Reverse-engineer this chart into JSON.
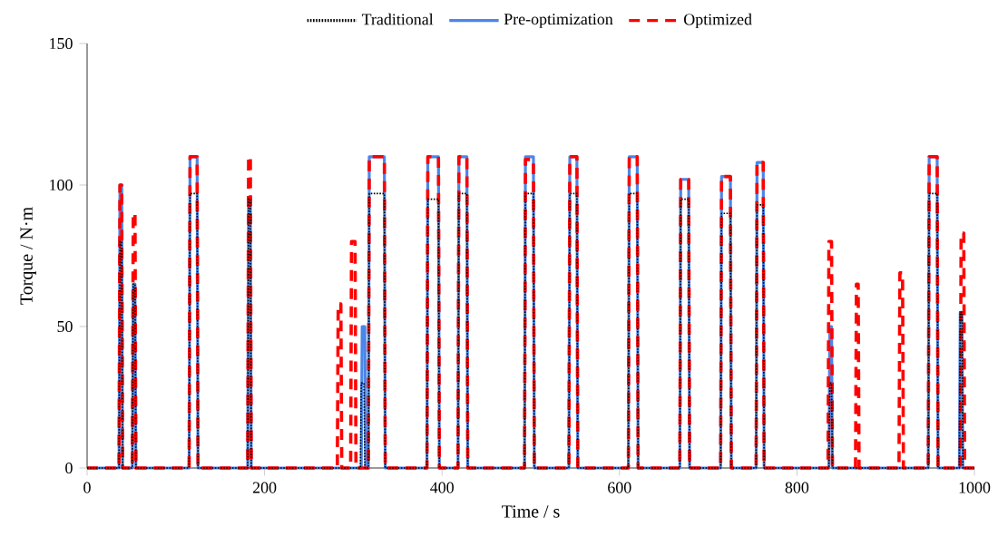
{
  "chart_data": {
    "type": "line",
    "xlabel": "Time / s",
    "ylabel": "Torque / N·m",
    "xlim": [
      0,
      1000
    ],
    "ylim": [
      0,
      150
    ],
    "xticks": [
      0,
      200,
      400,
      600,
      800,
      1000
    ],
    "yticks": [
      0,
      50,
      100,
      150
    ],
    "grid": false,
    "legend": "top",
    "series": [
      {
        "name": "Traditional",
        "color": "#000000",
        "line_style": "dotted",
        "x": [
          0,
          36,
          37,
          39,
          40,
          51,
          52,
          54,
          55,
          115,
          116,
          124,
          125,
          181,
          182,
          184,
          185,
          308,
          309,
          312,
          313,
          317,
          318,
          335,
          336,
          383,
          384,
          396,
          397,
          418,
          419,
          428,
          429,
          493,
          494,
          503,
          504,
          543,
          544,
          552,
          553,
          610,
          611,
          620,
          621,
          668,
          669,
          678,
          679,
          714,
          715,
          725,
          726,
          754,
          755,
          762,
          763,
          836,
          837,
          839,
          840,
          948,
          949,
          958,
          959,
          983,
          984,
          986,
          987,
          1000
        ],
        "values": [
          0,
          0,
          80,
          80,
          0,
          0,
          65,
          65,
          0,
          0,
          97,
          97,
          0,
          0,
          95,
          95,
          0,
          0,
          30,
          30,
          0,
          0,
          97,
          97,
          0,
          0,
          95,
          95,
          0,
          0,
          97,
          97,
          0,
          0,
          97,
          97,
          0,
          0,
          97,
          97,
          0,
          0,
          97,
          97,
          0,
          0,
          95,
          95,
          0,
          0,
          90,
          90,
          0,
          0,
          93,
          93,
          0,
          0,
          30,
          30,
          0,
          0,
          97,
          97,
          0,
          0,
          55,
          55,
          0,
          0
        ]
      },
      {
        "name": "Pre-optimization",
        "color": "#4a86e8",
        "line_style": "solid",
        "x": [
          0,
          36,
          37,
          39,
          40,
          51,
          52,
          54,
          55,
          115,
          116,
          124,
          125,
          181,
          182,
          184,
          185,
          309,
          310,
          313,
          314,
          317,
          318,
          335,
          336,
          383,
          384,
          396,
          397,
          418,
          419,
          428,
          429,
          493,
          494,
          503,
          504,
          543,
          544,
          552,
          553,
          610,
          611,
          620,
          621,
          668,
          669,
          678,
          679,
          714,
          715,
          725,
          726,
          754,
          755,
          762,
          763,
          836,
          837,
          839,
          840,
          948,
          949,
          958,
          959,
          983,
          984,
          986,
          987,
          1000
        ],
        "values": [
          0,
          0,
          100,
          100,
          0,
          0,
          65,
          65,
          0,
          0,
          110,
          110,
          0,
          0,
          95,
          95,
          0,
          0,
          50,
          50,
          0,
          0,
          110,
          110,
          0,
          0,
          110,
          110,
          0,
          0,
          110,
          110,
          0,
          0,
          110,
          110,
          0,
          0,
          110,
          110,
          0,
          0,
          110,
          110,
          0,
          0,
          102,
          102,
          0,
          0,
          103,
          103,
          0,
          0,
          108,
          108,
          0,
          0,
          50,
          50,
          0,
          0,
          110,
          110,
          0,
          0,
          55,
          55,
          0,
          0
        ]
      },
      {
        "name": "Optimized",
        "color": "#ff0000",
        "line_style": "dashed",
        "x": [
          0,
          36,
          37,
          39,
          40,
          51,
          52,
          54,
          55,
          115,
          116,
          124,
          125,
          181,
          182,
          184,
          185,
          282,
          283,
          286,
          287,
          297,
          298,
          302,
          303,
          317,
          318,
          335,
          336,
          383,
          384,
          396,
          397,
          418,
          419,
          428,
          429,
          493,
          494,
          503,
          504,
          543,
          544,
          552,
          553,
          610,
          611,
          620,
          621,
          668,
          669,
          678,
          679,
          714,
          715,
          725,
          726,
          754,
          755,
          762,
          763,
          835,
          836,
          839,
          840,
          866,
          867,
          869,
          870,
          915,
          916,
          919,
          920,
          948,
          949,
          958,
          959,
          984,
          985,
          988,
          989,
          1000
        ],
        "values": [
          0,
          0,
          100,
          100,
          0,
          0,
          90,
          90,
          0,
          0,
          110,
          110,
          0,
          0,
          110,
          110,
          0,
          0,
          58,
          58,
          0,
          0,
          80,
          80,
          0,
          0,
          110,
          110,
          0,
          0,
          110,
          110,
          0,
          0,
          110,
          110,
          0,
          0,
          109,
          109,
          0,
          0,
          110,
          110,
          0,
          0,
          110,
          110,
          0,
          0,
          102,
          102,
          0,
          0,
          103,
          103,
          0,
          0,
          108,
          108,
          0,
          0,
          80,
          80,
          0,
          0,
          65,
          65,
          0,
          0,
          69,
          69,
          0,
          0,
          110,
          110,
          0,
          0,
          83,
          83,
          0,
          0
        ]
      }
    ]
  }
}
